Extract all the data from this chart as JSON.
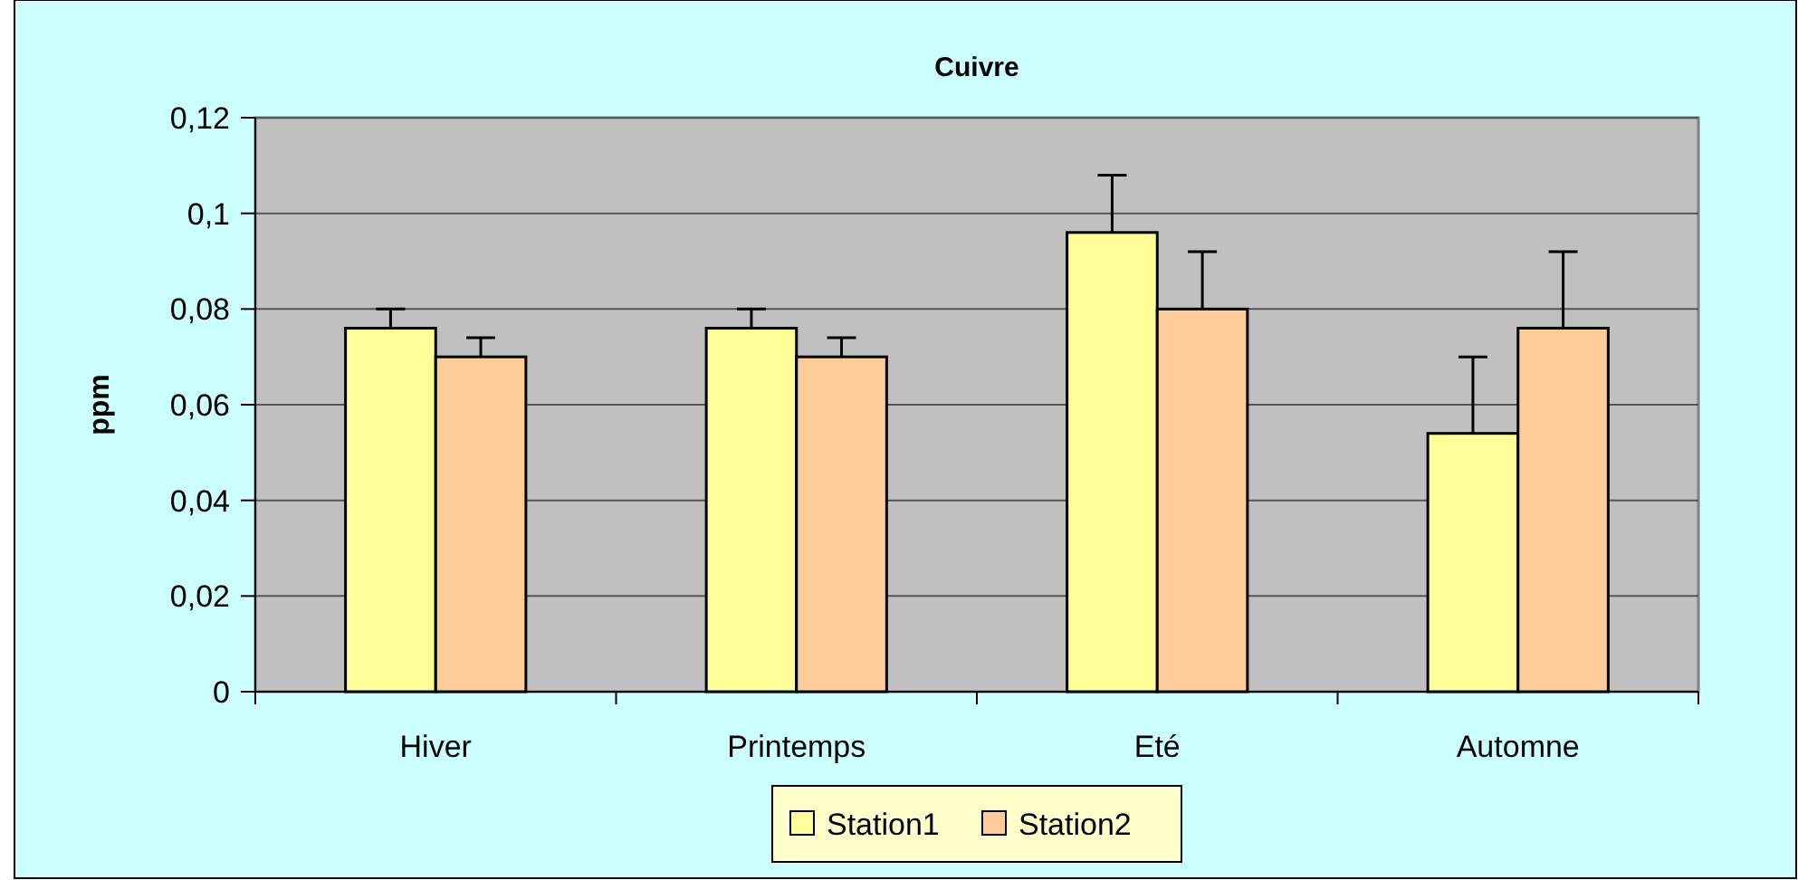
{
  "chart_data": {
    "type": "bar",
    "title": "Cuivre",
    "ylabel": "ppm",
    "categories": [
      "Hiver",
      "Printemps",
      "Eté",
      "Automne"
    ],
    "series": [
      {
        "name": "Station1",
        "color": "#ffff99",
        "values": [
          0.076,
          0.076,
          0.096,
          0.054
        ],
        "errors": [
          [
            0.076,
            0.08
          ],
          [
            0.076,
            0.08
          ],
          [
            0.096,
            0.108
          ],
          [
            0.054,
            0.07
          ]
        ]
      },
      {
        "name": "Station2",
        "color": "#ffcc99",
        "values": [
          0.07,
          0.07,
          0.08,
          0.076
        ],
        "errors": [
          [
            0.07,
            0.074
          ],
          [
            0.07,
            0.074
          ],
          [
            0.08,
            0.092
          ],
          [
            0.076,
            0.092
          ]
        ]
      }
    ],
    "ylim": [
      0,
      0.12
    ],
    "yticks": [
      {
        "value": 0,
        "label": "0"
      },
      {
        "value": 0.02,
        "label": "0,02"
      },
      {
        "value": 0.04,
        "label": "0,04"
      },
      {
        "value": 0.06,
        "label": "0,06"
      },
      {
        "value": 0.08,
        "label": "0,08"
      },
      {
        "value": 0.1,
        "label": "0,1"
      },
      {
        "value": 0.12,
        "label": "0,12"
      }
    ],
    "grid": "y",
    "legend": "bottom"
  }
}
